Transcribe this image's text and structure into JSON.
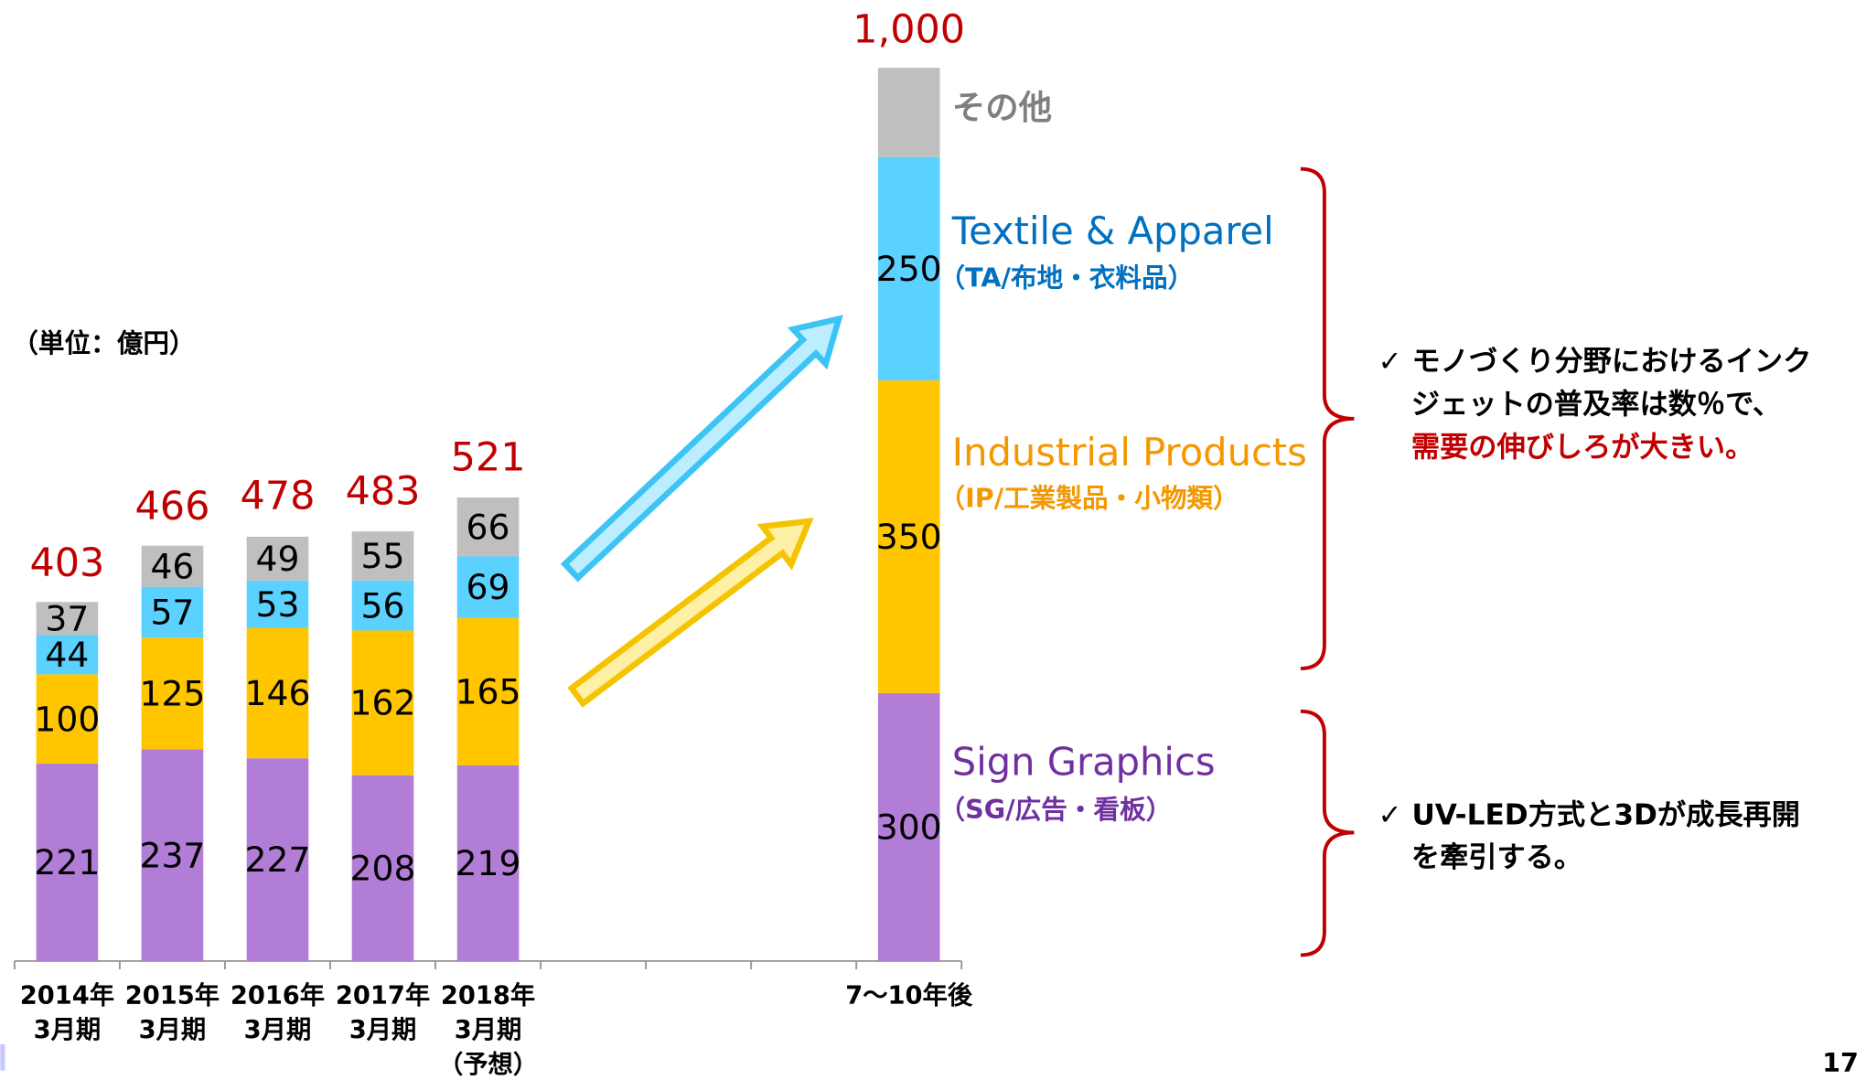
{
  "chart_data": {
    "type": "stacked_bar",
    "unit_label": "（単位：億円）",
    "categories": [
      [
        "2014年",
        "3月期"
      ],
      [
        "2015年",
        "3月期"
      ],
      [
        "2016年",
        "3月期"
      ],
      [
        "2017年",
        "3月期"
      ],
      [
        "2018年",
        "3月期",
        "（予想）"
      ],
      null,
      null,
      null,
      [
        "7～10年後"
      ]
    ],
    "ylim": [
      0,
      1000
    ],
    "series": [
      {
        "name": "Sign Graphics",
        "subname": "（SG/広告・看板）",
        "color": "#b27dd6",
        "text_color": "#7030a0",
        "values": [
          221,
          237,
          227,
          208,
          219,
          null,
          null,
          null,
          300
        ]
      },
      {
        "name": "Industrial Products",
        "subname": "（IP/工業製品・小物類）",
        "color": "#ffc600",
        "text_color": "#f39800",
        "values": [
          100,
          125,
          146,
          162,
          165,
          null,
          null,
          null,
          350
        ]
      },
      {
        "name": "Textile & Apparel",
        "subname": "（TA/布地・衣料品）",
        "color": "#5bd1ff",
        "text_color": "#0070c0",
        "values": [
          44,
          57,
          53,
          56,
          69,
          null,
          null,
          null,
          250
        ]
      },
      {
        "name": "その他",
        "color": "#bfbfbf",
        "text_color": "#7f7f7f",
        "values": [
          37,
          46,
          49,
          55,
          66,
          null,
          null,
          null,
          100
        ],
        "value_labels": [
          "37",
          "46",
          "49",
          "55",
          "66",
          null,
          null,
          null,
          null
        ]
      }
    ],
    "totals": [
      403,
      466,
      478,
      483,
      521,
      null,
      null,
      null,
      1000
    ],
    "totals_labels": [
      "403",
      "466",
      "478",
      "483",
      "521",
      null,
      null,
      null,
      "1,000"
    ],
    "total_color": "#c00000",
    "notes": [
      {
        "lines": [
          "✓ モノづくり分野におけるインク",
          "ジェットの普及率は数％で、"
        ],
        "highlight": "需要の伸びしろが大きい。"
      },
      {
        "lines": [
          "✓ UV-LED方式と3Dが成長再開",
          "を牽引する。"
        ]
      }
    ],
    "page_number": "17"
  }
}
